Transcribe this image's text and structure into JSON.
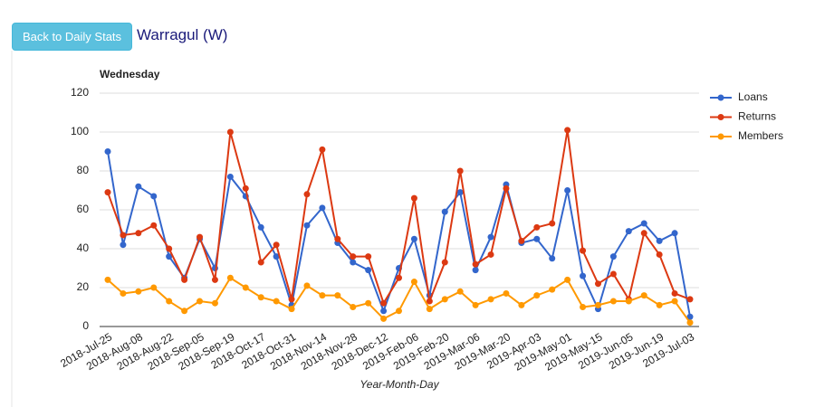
{
  "page": {
    "button": "Back to Daily Stats",
    "heading": "Warragul (W)"
  },
  "chart_data": {
    "type": "line",
    "title": "Wednesday",
    "x_label": "Year-Month-Day",
    "categories": [
      "2018-Jul-25",
      null,
      "2018-Aug-08",
      null,
      "2018-Aug-22",
      null,
      "2018-Sep-05",
      null,
      "2018-Sep-19",
      null,
      "2018-Oct-17",
      null,
      "2018-Oct-31",
      null,
      "2018-Nov-14",
      null,
      "2018-Nov-28",
      null,
      "2018-Dec-12",
      null,
      "2019-Feb-06",
      null,
      "2019-Feb-20",
      null,
      "2019-Mar-06",
      null,
      "2019-Mar-20",
      null,
      "2019-Apr-03",
      null,
      "2019-May-01",
      null,
      "2019-May-15",
      null,
      "2019-Jun-05",
      null,
      "2019-Jun-19",
      null,
      "2019-Jul-03"
    ],
    "series": [
      {
        "name": "Loans",
        "color": "#3366cc",
        "values": [
          90,
          42,
          72,
          67,
          36,
          25,
          45,
          30,
          77,
          67,
          51,
          36,
          11,
          52,
          61,
          43,
          33,
          29,
          8,
          30,
          45,
          16,
          59,
          69,
          29,
          46,
          73,
          43,
          45,
          35,
          70,
          26,
          9,
          36,
          49,
          53,
          44,
          48,
          5
        ]
      },
      {
        "name": "Returns",
        "color": "#dc3912",
        "values": [
          69,
          47,
          48,
          52,
          40,
          24,
          46,
          24,
          100,
          71,
          33,
          42,
          14,
          68,
          91,
          45,
          36,
          36,
          12,
          25,
          66,
          13,
          33,
          80,
          32,
          37,
          71,
          44,
          51,
          53,
          101,
          39,
          22,
          27,
          14,
          48,
          37,
          17,
          14
        ]
      },
      {
        "name": "Members",
        "color": "#ff9900",
        "values": [
          24,
          17,
          18,
          20,
          13,
          8,
          13,
          12,
          25,
          20,
          15,
          13,
          9,
          21,
          16,
          16,
          10,
          12,
          4,
          8,
          23,
          9,
          14,
          18,
          11,
          14,
          17,
          11,
          16,
          19,
          24,
          10,
          11,
          13,
          13,
          16,
          11,
          13,
          2
        ]
      }
    ],
    "ylim": [
      0,
      120
    ],
    "yticks": [
      0,
      20,
      40,
      60,
      80,
      100,
      120
    ],
    "grid": true,
    "legend": "right"
  }
}
